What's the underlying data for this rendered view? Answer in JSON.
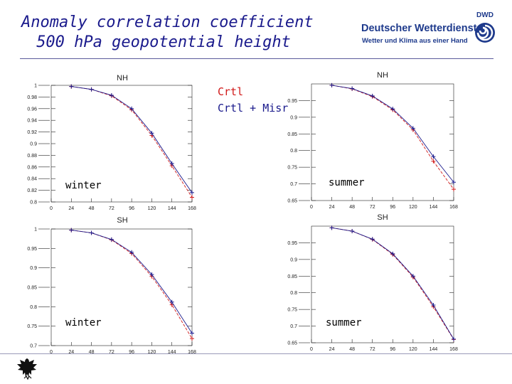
{
  "title": {
    "line1": "Anomaly correlation coefficient",
    "line2": "500 hPa geopotential height"
  },
  "logo": {
    "name": "Deutscher Wetterdienst",
    "subtitle": "Wetter und Klima aus einer Hand",
    "mark": "DWD"
  },
  "legend": {
    "items": [
      {
        "label": "Crtl",
        "color": "#d11a1a"
      },
      {
        "label": "Crtl + Misr",
        "color": "#1a1a8c"
      }
    ]
  },
  "chart_data": [
    {
      "type": "line",
      "title": "NH",
      "annotation": "winter",
      "x_ticks": [
        "0",
        "24",
        "48",
        "72",
        "96",
        "120",
        "144",
        "168"
      ],
      "y_ticks": [
        "0.8",
        "0.82",
        "0.84",
        "0.86",
        "0.88",
        "0.9",
        "0.92",
        "0.94",
        "0.96",
        "0.98",
        "1"
      ],
      "xlim": [
        0,
        168
      ],
      "ylim": [
        0.8,
        1
      ],
      "x": [
        24,
        48,
        72,
        96,
        120,
        144,
        168
      ],
      "series": [
        {
          "name": "Crtl",
          "color": "#d11a1a",
          "values": [
            0.998,
            0.993,
            0.982,
            0.958,
            0.914,
            0.862,
            0.808
          ]
        },
        {
          "name": "Crtl + Misr",
          "color": "#1a1a8c",
          "values": [
            0.998,
            0.993,
            0.983,
            0.96,
            0.918,
            0.866,
            0.816
          ]
        }
      ]
    },
    {
      "type": "line",
      "title": "NH",
      "annotation": "summer",
      "x_ticks": [
        "0",
        "24",
        "48",
        "72",
        "96",
        "120",
        "144",
        "168"
      ],
      "y_ticks": [
        "0.65",
        "0.7",
        "0.75",
        "0.8",
        "0.85",
        "0.9",
        "0.95"
      ],
      "xlim": [
        0,
        168
      ],
      "ylim": [
        0.65,
        1
      ],
      "x": [
        24,
        48,
        72,
        96,
        120,
        144,
        168
      ],
      "series": [
        {
          "name": "Crtl",
          "color": "#d11a1a",
          "values": [
            0.996,
            0.985,
            0.962,
            0.922,
            0.862,
            0.768,
            0.684
          ]
        },
        {
          "name": "Crtl + Misr",
          "color": "#1a1a8c",
          "values": [
            0.996,
            0.986,
            0.964,
            0.925,
            0.867,
            0.782,
            0.705
          ]
        }
      ]
    },
    {
      "type": "line",
      "title": "SH",
      "annotation": "winter",
      "x_ticks": [
        "0",
        "24",
        "48",
        "72",
        "96",
        "120",
        "144",
        "168"
      ],
      "y_ticks": [
        "0.7",
        "0.75",
        "0.8",
        "0.85",
        "0.9",
        "0.95",
        "1"
      ],
      "xlim": [
        0,
        168
      ],
      "ylim": [
        0.7,
        1
      ],
      "x": [
        24,
        48,
        72,
        96,
        120,
        144,
        168
      ],
      "series": [
        {
          "name": "Crtl",
          "color": "#d11a1a",
          "values": [
            0.997,
            0.99,
            0.972,
            0.937,
            0.878,
            0.805,
            0.718
          ]
        },
        {
          "name": "Crtl + Misr",
          "color": "#1a1a8c",
          "values": [
            0.997,
            0.99,
            0.973,
            0.94,
            0.883,
            0.812,
            0.732
          ]
        }
      ]
    },
    {
      "type": "line",
      "title": "SH",
      "annotation": "summer",
      "x_ticks": [
        "0",
        "24",
        "48",
        "72",
        "96",
        "120",
        "144",
        "168"
      ],
      "y_ticks": [
        "0.65",
        "0.7",
        "0.75",
        "0.8",
        "0.85",
        "0.9",
        "0.95"
      ],
      "xlim": [
        0,
        168
      ],
      "ylim": [
        0.65,
        1
      ],
      "x": [
        24,
        48,
        72,
        96,
        120,
        144,
        168
      ],
      "series": [
        {
          "name": "Crtl",
          "color": "#d11a1a",
          "values": [
            0.995,
            0.985,
            0.96,
            0.915,
            0.847,
            0.758,
            0.66
          ]
        },
        {
          "name": "Crtl + Misr",
          "color": "#1a1a8c",
          "values": [
            0.995,
            0.985,
            0.961,
            0.917,
            0.85,
            0.763,
            0.661
          ]
        }
      ]
    }
  ]
}
